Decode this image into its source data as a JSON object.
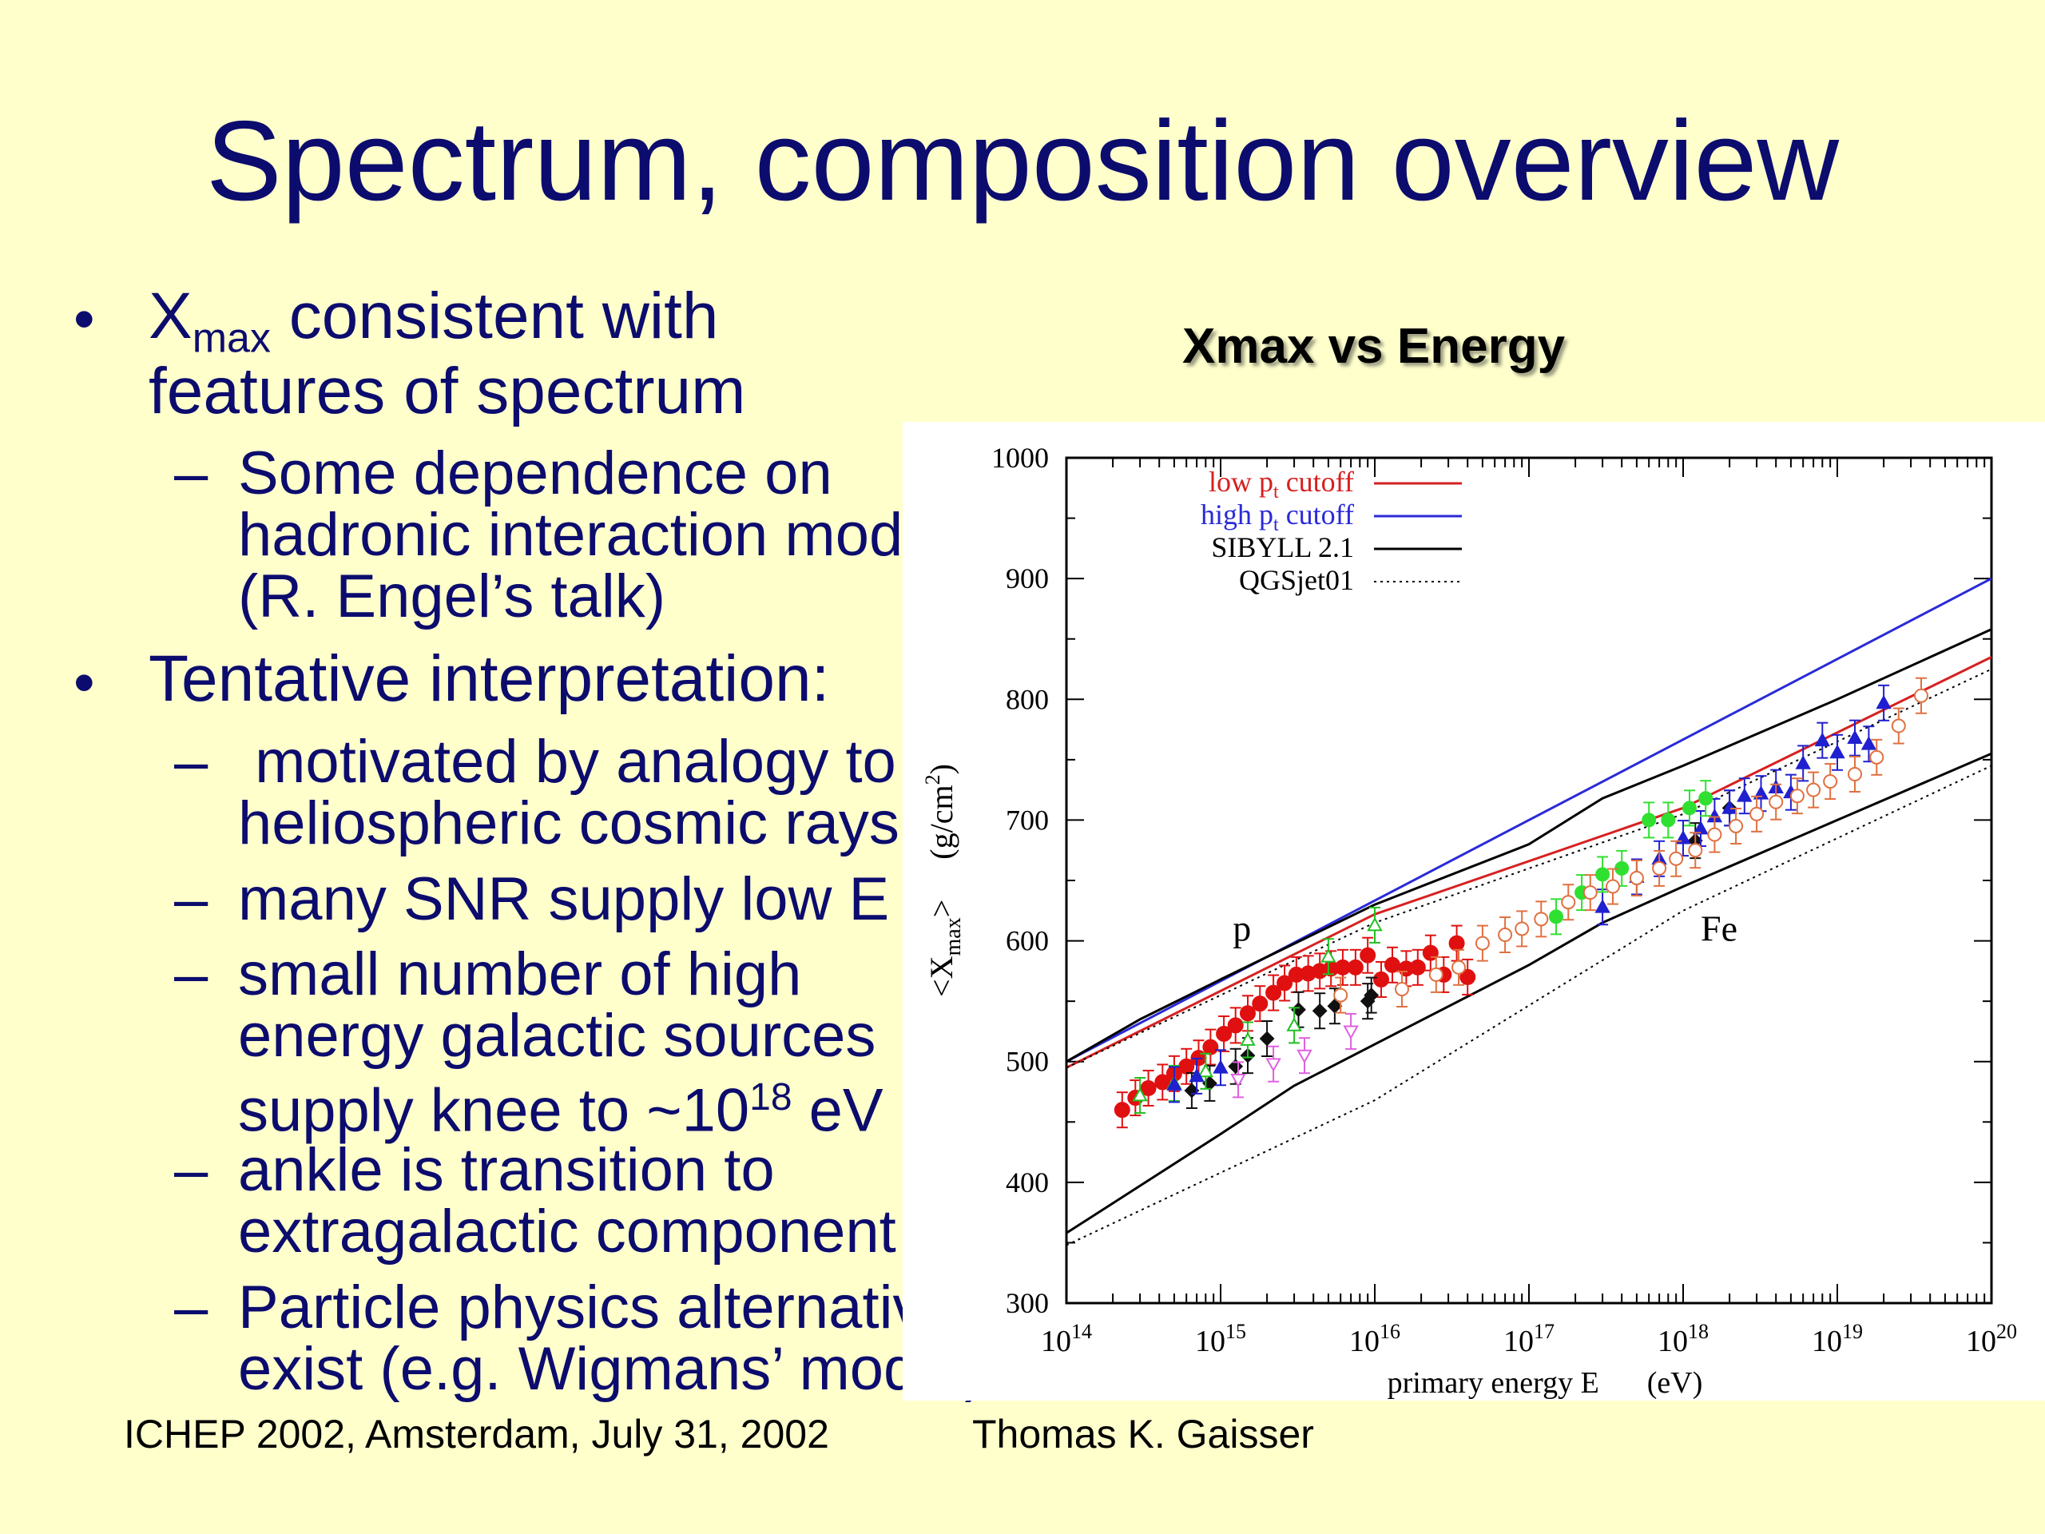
{
  "slide": {
    "title": "Spectrum, composition overview",
    "bullets": {
      "b1": {
        "marker": "•",
        "line1_x": "X",
        "line1_sub": "max",
        "line1_rest": " consistent with",
        "line2": "features of spectrum",
        "sub1": {
          "marker": "–",
          "lines": [
            "Some dependence on",
            "hadronic interaction models",
            "(R. Engel’s talk)"
          ]
        }
      },
      "b2": {
        "marker": "•",
        "line1": "Tentative interpretation:",
        "subs": [
          {
            "marker": "–",
            "lines": [
              " motivated by analogy to",
              "heliospheric cosmic rays"
            ]
          },
          {
            "marker": "–",
            "lines": [
              "many SNR supply low E"
            ]
          },
          {
            "marker": "–",
            "lines": [
              "small number of high",
              "energy galactic sources"
            ],
            "last_pre": "supply knee to ~10",
            "last_sup": "18",
            "last_post": " eV"
          },
          {
            "marker": "–",
            "lines": [
              "ankle is transition to",
              "extragalactic component"
            ]
          },
          {
            "marker": "–",
            "lines": [
              "Particle physics alternatives",
              "exist (e.g. Wigmans’ model)"
            ]
          }
        ]
      }
    },
    "footer": {
      "left": "ICHEP 2002, Amsterdam, July 31, 2002",
      "right": "Thomas K. Gaisser"
    }
  },
  "figure_title": "Xmax vs Energy",
  "chart_data": {
    "type": "line",
    "xscale": "log",
    "xlim": [
      100000000000000.0,
      1e+20
    ],
    "ylim": [
      300,
      1000
    ],
    "xlabel_pre": "primary energy E",
    "xlabel_unit": "(eV)",
    "ylabel_pre": "<X",
    "ylabel_sub": "max",
    "ylabel_post": ">",
    "ylabel_unit": "(g/cm",
    "ylabel_unit_sup": "2",
    "ylabel_unit_close": ")",
    "yticks": [
      "300",
      "400",
      "500",
      "600",
      "700",
      "800",
      "900",
      "1000"
    ],
    "xticks": [
      {
        "base": "10",
        "exp": "14",
        "v": 100000000000000.0
      },
      {
        "base": "10",
        "exp": "15",
        "v": 1000000000000000.0
      },
      {
        "base": "10",
        "exp": "16",
        "v": 1e+16
      },
      {
        "base": "10",
        "exp": "17",
        "v": 1e+17
      },
      {
        "base": "10",
        "exp": "18",
        "v": 1e+18
      },
      {
        "base": "10",
        "exp": "19",
        "v": 1e+19
      },
      {
        "base": "10",
        "exp": "20",
        "v": 1e+20
      }
    ],
    "annotations": [
      {
        "text": "p",
        "x": 1200000000000000.0,
        "y": 600
      },
      {
        "text": "Fe",
        "x": 1.3e+18,
        "y": 600
      }
    ],
    "legend": {
      "position": "top-left",
      "entries": [
        {
          "pre": "low p",
          "sub": "t",
          "post": " cutoff",
          "color": "#d62020",
          "style": "solid"
        },
        {
          "pre": "high p",
          "sub": "t",
          "post": " cutoff",
          "color": "#2a2ad8",
          "style": "solid"
        },
        {
          "pre": "SIBYLL 2.1",
          "sub": "",
          "post": "",
          "color": "#000000",
          "style": "solid"
        },
        {
          "pre": "QGSjet01",
          "sub": "",
          "post": "",
          "color": "#000000",
          "style": "dotted"
        }
      ]
    },
    "series": [
      {
        "name": "high pt cutoff",
        "color": "#2a2ad8",
        "style": "solid",
        "points": [
          [
            100000000000000.0,
            500
          ],
          [
            1e+20,
            900
          ]
        ]
      },
      {
        "name": "low pt cutoff",
        "color": "#d62020",
        "style": "solid",
        "points": [
          [
            100000000000000.0,
            495
          ],
          [
            1e+16,
            622
          ],
          [
            1e+18,
            710
          ],
          [
            1e+20,
            835
          ]
        ]
      },
      {
        "name": "SIBYLL 2.1",
        "color": "#000000",
        "style": "solid",
        "points": [
          [
            100000000000000.0,
            500
          ],
          [
            300000000000000.0,
            535
          ],
          [
            1000000000000000.0,
            568
          ],
          [
            1e+16,
            630
          ],
          [
            1e+17,
            680
          ],
          [
            3e+17,
            718
          ],
          [
            1e+18,
            745
          ],
          [
            1e+19,
            800
          ],
          [
            1e+20,
            858
          ]
        ]
      },
      {
        "name": "QGSjet01",
        "color": "#000000",
        "style": "dotted",
        "points": [
          [
            100000000000000.0,
            495
          ],
          [
            1e+16,
            615
          ],
          [
            1e+18,
            705
          ],
          [
            1e+20,
            825
          ]
        ]
      },
      {
        "name": "SIBYLL 2.1",
        "color": "#000000",
        "style": "solid",
        "points": [
          [
            100000000000000.0,
            358
          ],
          [
            1000000000000000.0,
            440
          ],
          [
            3000000000000000.0,
            480
          ],
          [
            1e+17,
            580
          ],
          [
            3e+17,
            615
          ],
          [
            1e+18,
            645
          ],
          [
            1e+19,
            700
          ],
          [
            1e+20,
            755
          ]
        ]
      },
      {
        "name": "QGSjet01",
        "color": "#000000",
        "style": "dotted",
        "points": [
          [
            100000000000000.0,
            348
          ],
          [
            1e+16,
            468
          ],
          [
            1e+18,
            625
          ],
          [
            1e+20,
            745
          ]
        ]
      }
    ],
    "scatter": [
      {
        "color": "#e01010",
        "marker": "circle-filled",
        "size": 9,
        "points": [
          [
            230000000000000.0,
            460
          ],
          [
            280000000000000.0,
            470
          ],
          [
            340000000000000.0,
            478
          ],
          [
            420000000000000.0,
            483
          ],
          [
            500000000000000.0,
            490
          ],
          [
            600000000000000.0,
            496
          ],
          [
            720000000000000.0,
            503
          ],
          [
            860000000000000.0,
            512
          ],
          [
            1050000000000000.0,
            523
          ],
          [
            1250000000000000.0,
            530
          ],
          [
            1500000000000000.0,
            540
          ],
          [
            1800000000000000.0,
            548
          ],
          [
            2200000000000000.0,
            557
          ],
          [
            2600000000000000.0,
            565
          ],
          [
            3100000000000000.0,
            572
          ],
          [
            3700000000000000.0,
            573
          ],
          [
            4400000000000000.0,
            575
          ],
          [
            5200000000000000.0,
            577
          ],
          [
            6200000000000000.0,
            578
          ],
          [
            7500000000000000.0,
            578
          ],
          [
            9000000000000000.0,
            588
          ],
          [
            1.1e+16,
            568
          ],
          [
            1.3e+16,
            580
          ],
          [
            1.6e+16,
            577
          ],
          [
            1.9e+16,
            578
          ],
          [
            2.3e+16,
            590
          ],
          [
            2.8e+16,
            572
          ],
          [
            3.4e+16,
            598
          ],
          [
            4e+16,
            570
          ]
        ]
      },
      {
        "color": "#101010",
        "marker": "diamond-filled",
        "size": 8,
        "points": [
          [
            650000000000000.0,
            476
          ],
          [
            850000000000000.0,
            482
          ],
          [
            1250000000000000.0,
            496
          ],
          [
            1500000000000000.0,
            505
          ],
          [
            2000000000000000.0,
            519
          ],
          [
            3200000000000000.0,
            543
          ],
          [
            4400000000000000.0,
            542
          ],
          [
            5500000000000000.0,
            546
          ],
          [
            9000000000000000.0,
            550
          ],
          [
            9500000000000000.0,
            555
          ],
          [
            1.2e+18,
            683
          ],
          [
            2e+18,
            710
          ]
        ]
      },
      {
        "color": "#20c020",
        "marker": "triangle-open",
        "size": 8,
        "points": [
          [
            300000000000000.0,
            472
          ],
          [
            500000000000000.0,
            482
          ],
          [
            800000000000000.0,
            492
          ],
          [
            1500000000000000.0,
            518
          ],
          [
            3000000000000000.0,
            530
          ],
          [
            5000000000000000.0,
            587
          ],
          [
            1e+16,
            613
          ]
        ]
      },
      {
        "color": "#2020d0",
        "marker": "triangle-filled",
        "size": 8,
        "points": [
          [
            500000000000000.0,
            481
          ],
          [
            700000000000000.0,
            488
          ],
          [
            1000000000000000.0,
            495
          ],
          [
            3e+17,
            628
          ],
          [
            5e+17,
            653
          ],
          [
            7e+17,
            668
          ],
          [
            1e+18,
            685
          ],
          [
            1.3e+18,
            693
          ],
          [
            1.6e+18,
            703
          ],
          [
            2e+18,
            710
          ],
          [
            2.5e+18,
            720
          ],
          [
            3.2e+18,
            722
          ],
          [
            4e+18,
            727
          ],
          [
            5e+18,
            723
          ],
          [
            6e+18,
            747
          ],
          [
            8e+18,
            766
          ],
          [
            1e+19,
            756
          ],
          [
            1.3e+19,
            768
          ],
          [
            1.6e+19,
            763
          ],
          [
            2e+19,
            797
          ]
        ]
      },
      {
        "color": "#30e030",
        "marker": "circle-filled",
        "size": 8,
        "points": [
          [
            1.5e+17,
            620
          ],
          [
            2.2e+17,
            640
          ],
          [
            3e+17,
            655
          ],
          [
            4e+17,
            660
          ],
          [
            6e+17,
            700
          ],
          [
            8e+17,
            700
          ],
          [
            1.1e+18,
            710
          ],
          [
            1.4e+18,
            718
          ]
        ]
      },
      {
        "color": "#e060e0",
        "marker": "triangle-down-open",
        "size": 8,
        "points": [
          [
            1300000000000000.0,
            485
          ],
          [
            2200000000000000.0,
            498
          ],
          [
            3500000000000000.0,
            505
          ],
          [
            7000000000000000.0,
            525
          ]
        ]
      },
      {
        "color": "#e07040",
        "marker": "circle-open",
        "size": 8,
        "points": [
          [
            6000000000000000.0,
            555
          ],
          [
            1.5e+16,
            560
          ],
          [
            2.5e+16,
            572
          ],
          [
            3.5e+16,
            578
          ],
          [
            5e+16,
            598
          ],
          [
            7e+16,
            605
          ],
          [
            9e+16,
            610
          ],
          [
            1.2e+17,
            618
          ],
          [
            1.8e+17,
            632
          ],
          [
            2.5e+17,
            640
          ],
          [
            3.5e+17,
            645
          ],
          [
            5e+17,
            652
          ],
          [
            7e+17,
            660
          ],
          [
            9e+17,
            668
          ],
          [
            1.2e+18,
            675
          ],
          [
            1.6e+18,
            688
          ],
          [
            2.2e+18,
            695
          ],
          [
            3e+18,
            705
          ],
          [
            4e+18,
            715
          ],
          [
            5.5e+18,
            720
          ],
          [
            7e+18,
            725
          ],
          [
            9e+18,
            732
          ],
          [
            1.3e+19,
            738
          ],
          [
            1.8e+19,
            752
          ],
          [
            2.5e+19,
            778
          ],
          [
            3.5e+19,
            803
          ]
        ]
      }
    ]
  }
}
